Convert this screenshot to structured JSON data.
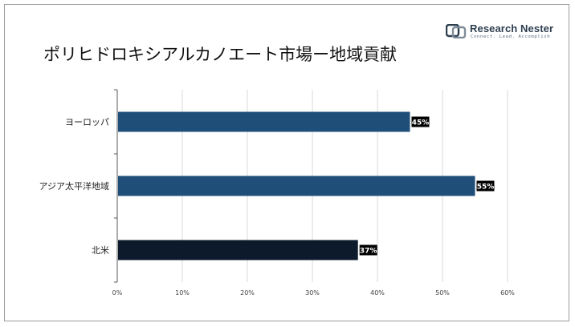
{
  "title": "ポリヒドロキシアルカノエート市場ー地域貢献",
  "logo": {
    "name": "Research Nester",
    "tagline": "Connect. Lead. Accomplish",
    "icon": "rn-logo-icon"
  },
  "colors": {
    "bar_europe": "#1f4e79",
    "bar_apac": "#1f4e79",
    "bar_na": "#0c1a2b",
    "label_bg": "#000000",
    "grid": "#d9d9d9",
    "axis": "#595959"
  },
  "chart_data": {
    "type": "bar",
    "orientation": "horizontal",
    "title": "ポリヒドロキシアルカノエート市場ー地域貢献",
    "categories": [
      "ヨーロッパ",
      "アジア太平洋地域",
      "北米"
    ],
    "values": [
      45,
      55,
      37
    ],
    "data_labels": [
      "45%",
      "55%",
      "37%"
    ],
    "xlim": [
      0,
      60
    ],
    "xticks": [
      "0%",
      "10%",
      "20%",
      "30%",
      "40%",
      "50%",
      "60%"
    ],
    "xtick_values": [
      0,
      10,
      20,
      30,
      40,
      50,
      60
    ],
    "grid": true,
    "legend": "none"
  }
}
